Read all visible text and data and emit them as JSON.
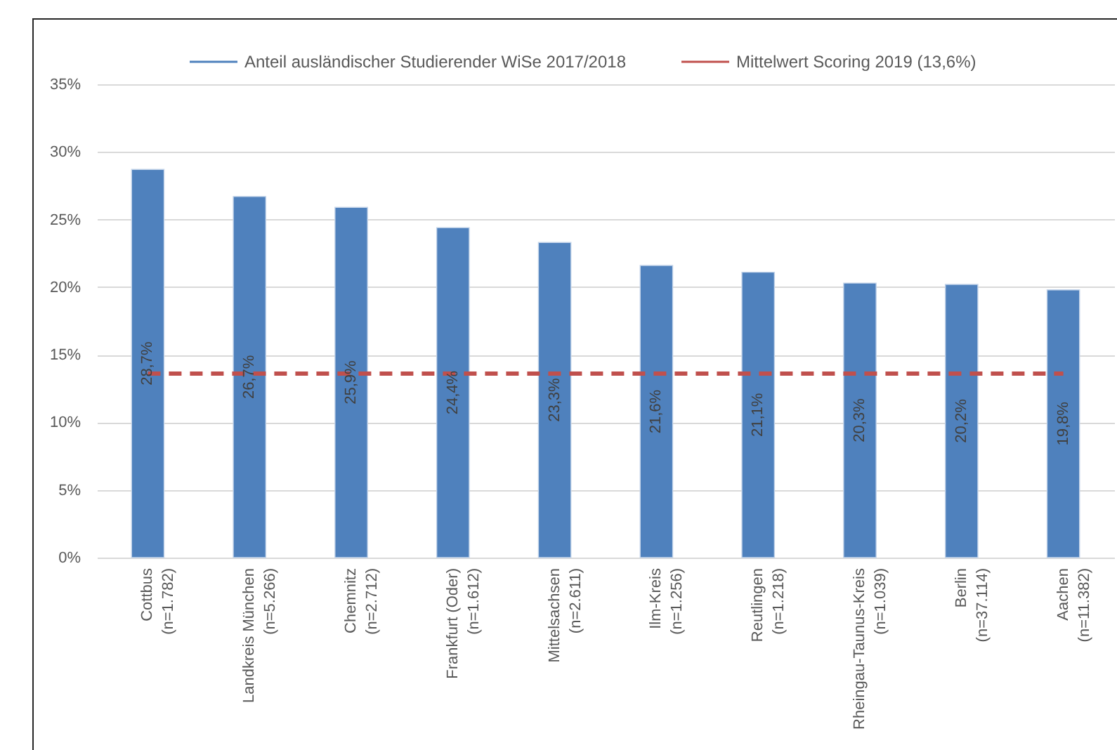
{
  "chart_data": {
    "type": "bar",
    "categories": [
      "Cottbus\n(n=1.782)",
      "Landkreis München\n(n=5.266)",
      "Chemnitz\n(n=2.712)",
      "Frankfurt (Oder)\n(n=1.612)",
      "Mittelsachsen\n(n=2.611)",
      "Ilm-Kreis\n(n=1.256)",
      "Reutlingen\n(n=1.218)",
      "Rheingau-Taunus-Kreis\n(n=1.039)",
      "Berlin\n(n=37.114)",
      "Aachen\n(n=11.382)"
    ],
    "series": [
      {
        "name": "Anteil ausländischer Studierender WiSe 2017/2018",
        "color": "#4f81bd",
        "values": [
          28.7,
          26.7,
          25.9,
          24.4,
          23.3,
          21.6,
          21.1,
          20.3,
          20.2,
          19.8
        ],
        "value_labels": [
          "28,7%",
          "26,7%",
          "25,9%",
          "24,4%",
          "23,3%",
          "21,6%",
          "21,1%",
          "20,3%",
          "20,2%",
          "19,8%"
        ]
      }
    ],
    "ylim": [
      0,
      35
    ],
    "yticks": [
      {
        "value": 0,
        "label": "0%"
      },
      {
        "value": 5,
        "label": "5%"
      },
      {
        "value": 10,
        "label": "10%"
      },
      {
        "value": 15,
        "label": "15%"
      },
      {
        "value": 20,
        "label": "20%"
      },
      {
        "value": 25,
        "label": "25%"
      },
      {
        "value": 30,
        "label": "30%"
      },
      {
        "value": 35,
        "label": "35%"
      }
    ],
    "grid": "y",
    "legend": "top",
    "ref_lines": [
      {
        "axis": "y",
        "value": 13.6,
        "label": "Mittelwert Scoring 2019 (13,6%)",
        "color": "#c0504d",
        "line_style": "dashed"
      }
    ]
  }
}
